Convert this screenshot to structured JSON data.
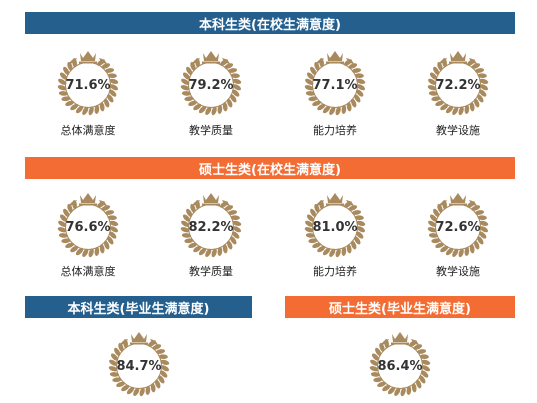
{
  "colors": {
    "blue": "#245f8e",
    "orange": "#f26c33",
    "gold": "#a88a5e"
  },
  "sections": [
    {
      "title": "本科生类(在校生满意度)",
      "color": "blue",
      "items": [
        {
          "value": "71.6%",
          "label": "总体满意度"
        },
        {
          "value": "79.2%",
          "label": "教学质量"
        },
        {
          "value": "77.1%",
          "label": "能力培养"
        },
        {
          "value": "72.2%",
          "label": "教学设施"
        }
      ]
    },
    {
      "title": "硕士生类(在校生满意度)",
      "color": "orange",
      "items": [
        {
          "value": "76.6%",
          "label": "总体满意度"
        },
        {
          "value": "82.2%",
          "label": "教学质量"
        },
        {
          "value": "81.0%",
          "label": "能力培养"
        },
        {
          "value": "72.6%",
          "label": "教学设施"
        }
      ]
    },
    {
      "title": "本科生类(毕业生满意度)",
      "color": "blue",
      "items": [
        {
          "value": "84.7%"
        }
      ]
    },
    {
      "title": "硕士生类(毕业生满意度)",
      "color": "orange",
      "items": [
        {
          "value": "86.4%"
        }
      ]
    }
  ]
}
